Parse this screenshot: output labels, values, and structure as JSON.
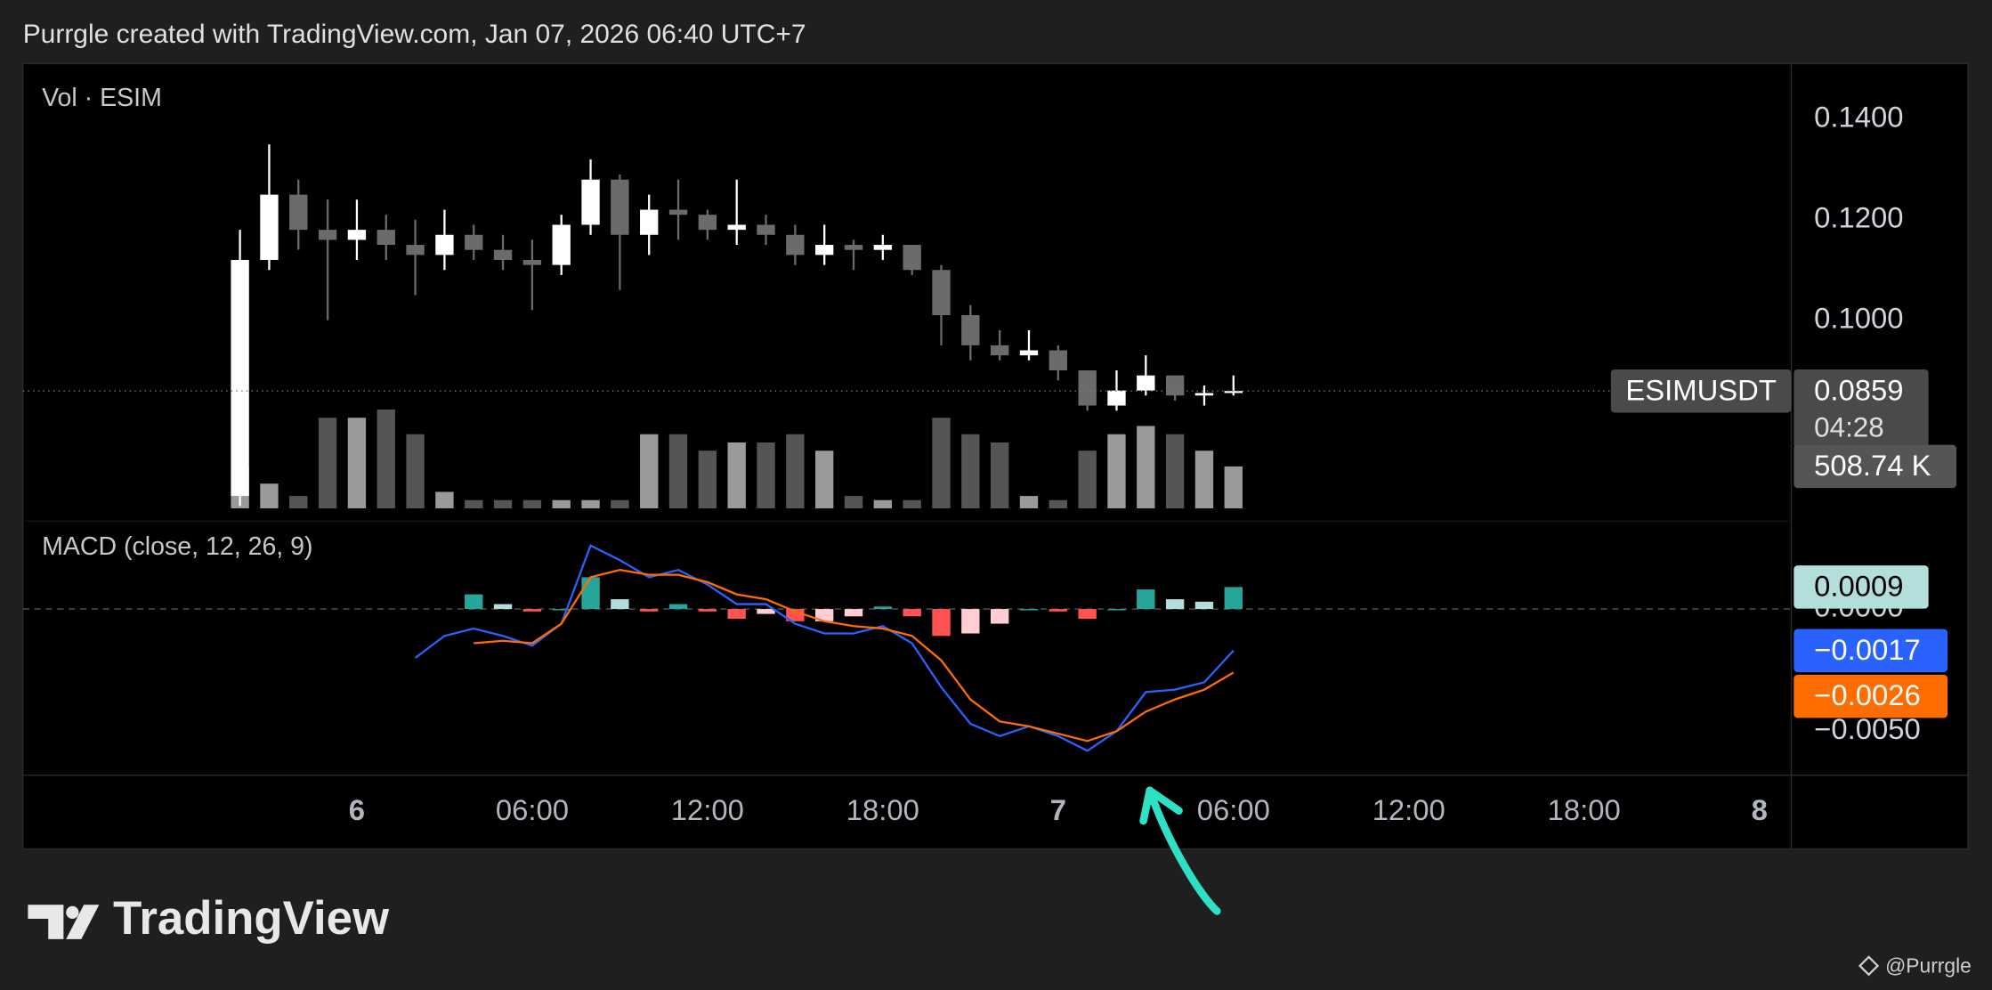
{
  "header": {
    "text": "Purrgle created with TradingView.com, Jan 07, 2026 06:40 UTC+7"
  },
  "footer": {
    "logo": "TradingView",
    "author": "@Purrgle"
  },
  "chart_data": [
    {
      "type": "candlestick",
      "title": "Vol · ESIM",
      "symbol": "ESIMUSDT",
      "countdown": "04:28",
      "up_color": "#ffffff",
      "down_color": "#6b6b6b",
      "xlim": [
        -11.43,
        49.09
      ],
      "ylim": [
        0.06,
        0.1511
      ],
      "yticks": [
        {
          "value": 0.1,
          "label": "0.1000"
        },
        {
          "value": 0.12,
          "label": "0.1200"
        },
        {
          "value": 0.14,
          "label": "0.1400"
        }
      ],
      "grid": false,
      "x": [
        -4,
        -3,
        -2,
        -1,
        0,
        1,
        2,
        3,
        4,
        5,
        6,
        7,
        8,
        9,
        10,
        11,
        12,
        13,
        14,
        15,
        16,
        17,
        18,
        19,
        20,
        21,
        22,
        23,
        24,
        25,
        26,
        27,
        28,
        29,
        30
      ],
      "open": [
        0.065,
        0.112,
        0.125,
        0.118,
        0.116,
        0.118,
        0.115,
        0.113,
        0.117,
        0.114,
        0.112,
        0.111,
        0.119,
        0.128,
        0.117,
        0.122,
        0.121,
        0.118,
        0.119,
        0.117,
        0.113,
        0.115,
        0.114,
        0.115,
        0.11,
        0.101,
        0.095,
        0.093,
        0.094,
        0.09,
        0.083,
        0.086,
        0.089,
        0.085,
        0.0855
      ],
      "high": [
        0.118,
        0.135,
        0.128,
        0.124,
        0.124,
        0.121,
        0.12,
        0.122,
        0.119,
        0.117,
        0.116,
        0.121,
        0.132,
        0.129,
        0.125,
        0.128,
        0.122,
        0.128,
        0.121,
        0.119,
        0.119,
        0.116,
        0.117,
        0.115,
        0.111,
        0.103,
        0.098,
        0.098,
        0.095,
        0.09,
        0.09,
        0.093,
        0.089,
        0.087,
        0.089
      ],
      "low": [
        0.063,
        0.11,
        0.114,
        0.1,
        0.112,
        0.112,
        0.105,
        0.11,
        0.112,
        0.11,
        0.102,
        0.109,
        0.117,
        0.106,
        0.113,
        0.116,
        0.116,
        0.115,
        0.115,
        0.111,
        0.111,
        0.11,
        0.112,
        0.109,
        0.095,
        0.092,
        0.092,
        0.092,
        0.088,
        0.082,
        0.082,
        0.085,
        0.084,
        0.083,
        0.085
      ],
      "close": [
        0.112,
        0.125,
        0.118,
        0.116,
        0.118,
        0.115,
        0.113,
        0.117,
        0.114,
        0.112,
        0.111,
        0.119,
        0.128,
        0.117,
        0.122,
        0.121,
        0.118,
        0.119,
        0.117,
        0.113,
        0.115,
        0.114,
        0.115,
        0.11,
        0.101,
        0.095,
        0.093,
        0.094,
        0.09,
        0.083,
        0.086,
        0.089,
        0.085,
        0.0855,
        0.0859
      ],
      "volume": {
        "ylim": [
          0,
          5400000
        ],
        "up_color": "#9a9a9a",
        "down_color": "#555555",
        "values": [
          500000,
          300000,
          150000,
          1100000,
          1100000,
          1200000,
          900000,
          200000,
          100000,
          100000,
          100000,
          100000,
          100000,
          100000,
          900000,
          900000,
          700000,
          800000,
          800000,
          900000,
          700000,
          150000,
          100000,
          100000,
          1100000,
          900000,
          800000,
          150000,
          100000,
          700000,
          900000,
          1000000,
          900000,
          700000,
          508740
        ],
        "value_labels": [
          null,
          null,
          null,
          null,
          null,
          null,
          null,
          null,
          null,
          null,
          null,
          null,
          null,
          null,
          null,
          null,
          null,
          null,
          null,
          null,
          null,
          null,
          null,
          null,
          null,
          null,
          null,
          null,
          null,
          null,
          null,
          null,
          null,
          null,
          "508.74 K"
        ]
      }
    },
    {
      "type": "macd",
      "title": "MACD (close, 12, 26, 9)",
      "xlim": [
        -11.43,
        49.09
      ],
      "xticks": [
        {
          "value": 0,
          "label": "6"
        },
        {
          "value": 6,
          "label": "06:00"
        },
        {
          "value": 12,
          "label": "12:00"
        },
        {
          "value": 18,
          "label": "18:00"
        },
        {
          "value": 24,
          "label": "7"
        },
        {
          "value": 30,
          "label": "06:00"
        },
        {
          "value": 36,
          "label": "12:00"
        },
        {
          "value": 42,
          "label": "18:00"
        },
        {
          "value": 48,
          "label": "8"
        }
      ],
      "ylim": [
        -0.0068,
        0.0036
      ],
      "yticks": [
        {
          "value": -0.005,
          "label": "−0.0050"
        },
        {
          "value": 0,
          "label": "0.0000"
        }
      ],
      "x": [
        2,
        3,
        4,
        5,
        6,
        7,
        8,
        9,
        10,
        11,
        12,
        13,
        14,
        15,
        16,
        17,
        18,
        19,
        20,
        21,
        22,
        23,
        24,
        25,
        26,
        27,
        28,
        29,
        30
      ],
      "macd": {
        "color": "#2962ff",
        "values": [
          -0.002,
          -0.0011,
          -0.0008,
          -0.0011,
          -0.0015,
          -0.0006,
          0.0026,
          0.002,
          0.0013,
          0.0016,
          0.001,
          0.0002,
          0.0002,
          -0.0006,
          -0.001,
          -0.001,
          -0.0007,
          -0.0014,
          -0.0032,
          -0.0047,
          -0.0052,
          -0.0048,
          -0.0052,
          -0.0058,
          -0.005,
          -0.0034,
          -0.0033,
          -0.003,
          -0.0017
        ],
        "value_labels": [
          null,
          null,
          null,
          null,
          null,
          null,
          null,
          null,
          null,
          null,
          null,
          null,
          null,
          null,
          null,
          null,
          null,
          null,
          null,
          null,
          null,
          null,
          null,
          null,
          null,
          null,
          null,
          null,
          "−0.0017"
        ]
      },
      "signal": {
        "color": "#ff6d00",
        "values": [
          null,
          null,
          -0.0014,
          -0.0013,
          -0.0014,
          -0.0006,
          0.0013,
          0.0016,
          0.0014,
          0.0014,
          0.0011,
          0.0006,
          0.0004,
          -0.0001,
          -0.0005,
          -0.0007,
          -0.0008,
          -0.0011,
          -0.0021,
          -0.0037,
          -0.0046,
          -0.0048,
          -0.0051,
          -0.0054,
          -0.005,
          -0.0042,
          -0.0037,
          -0.0033,
          -0.0026
        ],
        "value_labels": [
          null,
          null,
          null,
          null,
          null,
          null,
          null,
          null,
          null,
          null,
          null,
          null,
          null,
          null,
          null,
          null,
          null,
          null,
          null,
          null,
          null,
          null,
          null,
          null,
          null,
          null,
          null,
          null,
          "−0.0026"
        ]
      },
      "histogram": {
        "colors": {
          "above_rising": "#26a69a",
          "above_falling": "#b2dfdb",
          "below_falling": "#ff5252",
          "below_rising": "#ffcdd2"
        },
        "values": [
          null,
          null,
          0.0006,
          0.0002,
          -0.0001,
          0,
          0.0013,
          0.0004,
          -0.0001,
          0.0002,
          -0.0001,
          -0.0004,
          -0.0002,
          -0.0005,
          -0.0005,
          -0.0003,
          0.0001,
          -0.0003,
          -0.0011,
          -0.001,
          -0.0006,
          0,
          -0.0001,
          -0.0004,
          0,
          0.0008,
          0.0004,
          0.0003,
          0.0009
        ]
      }
    }
  ]
}
